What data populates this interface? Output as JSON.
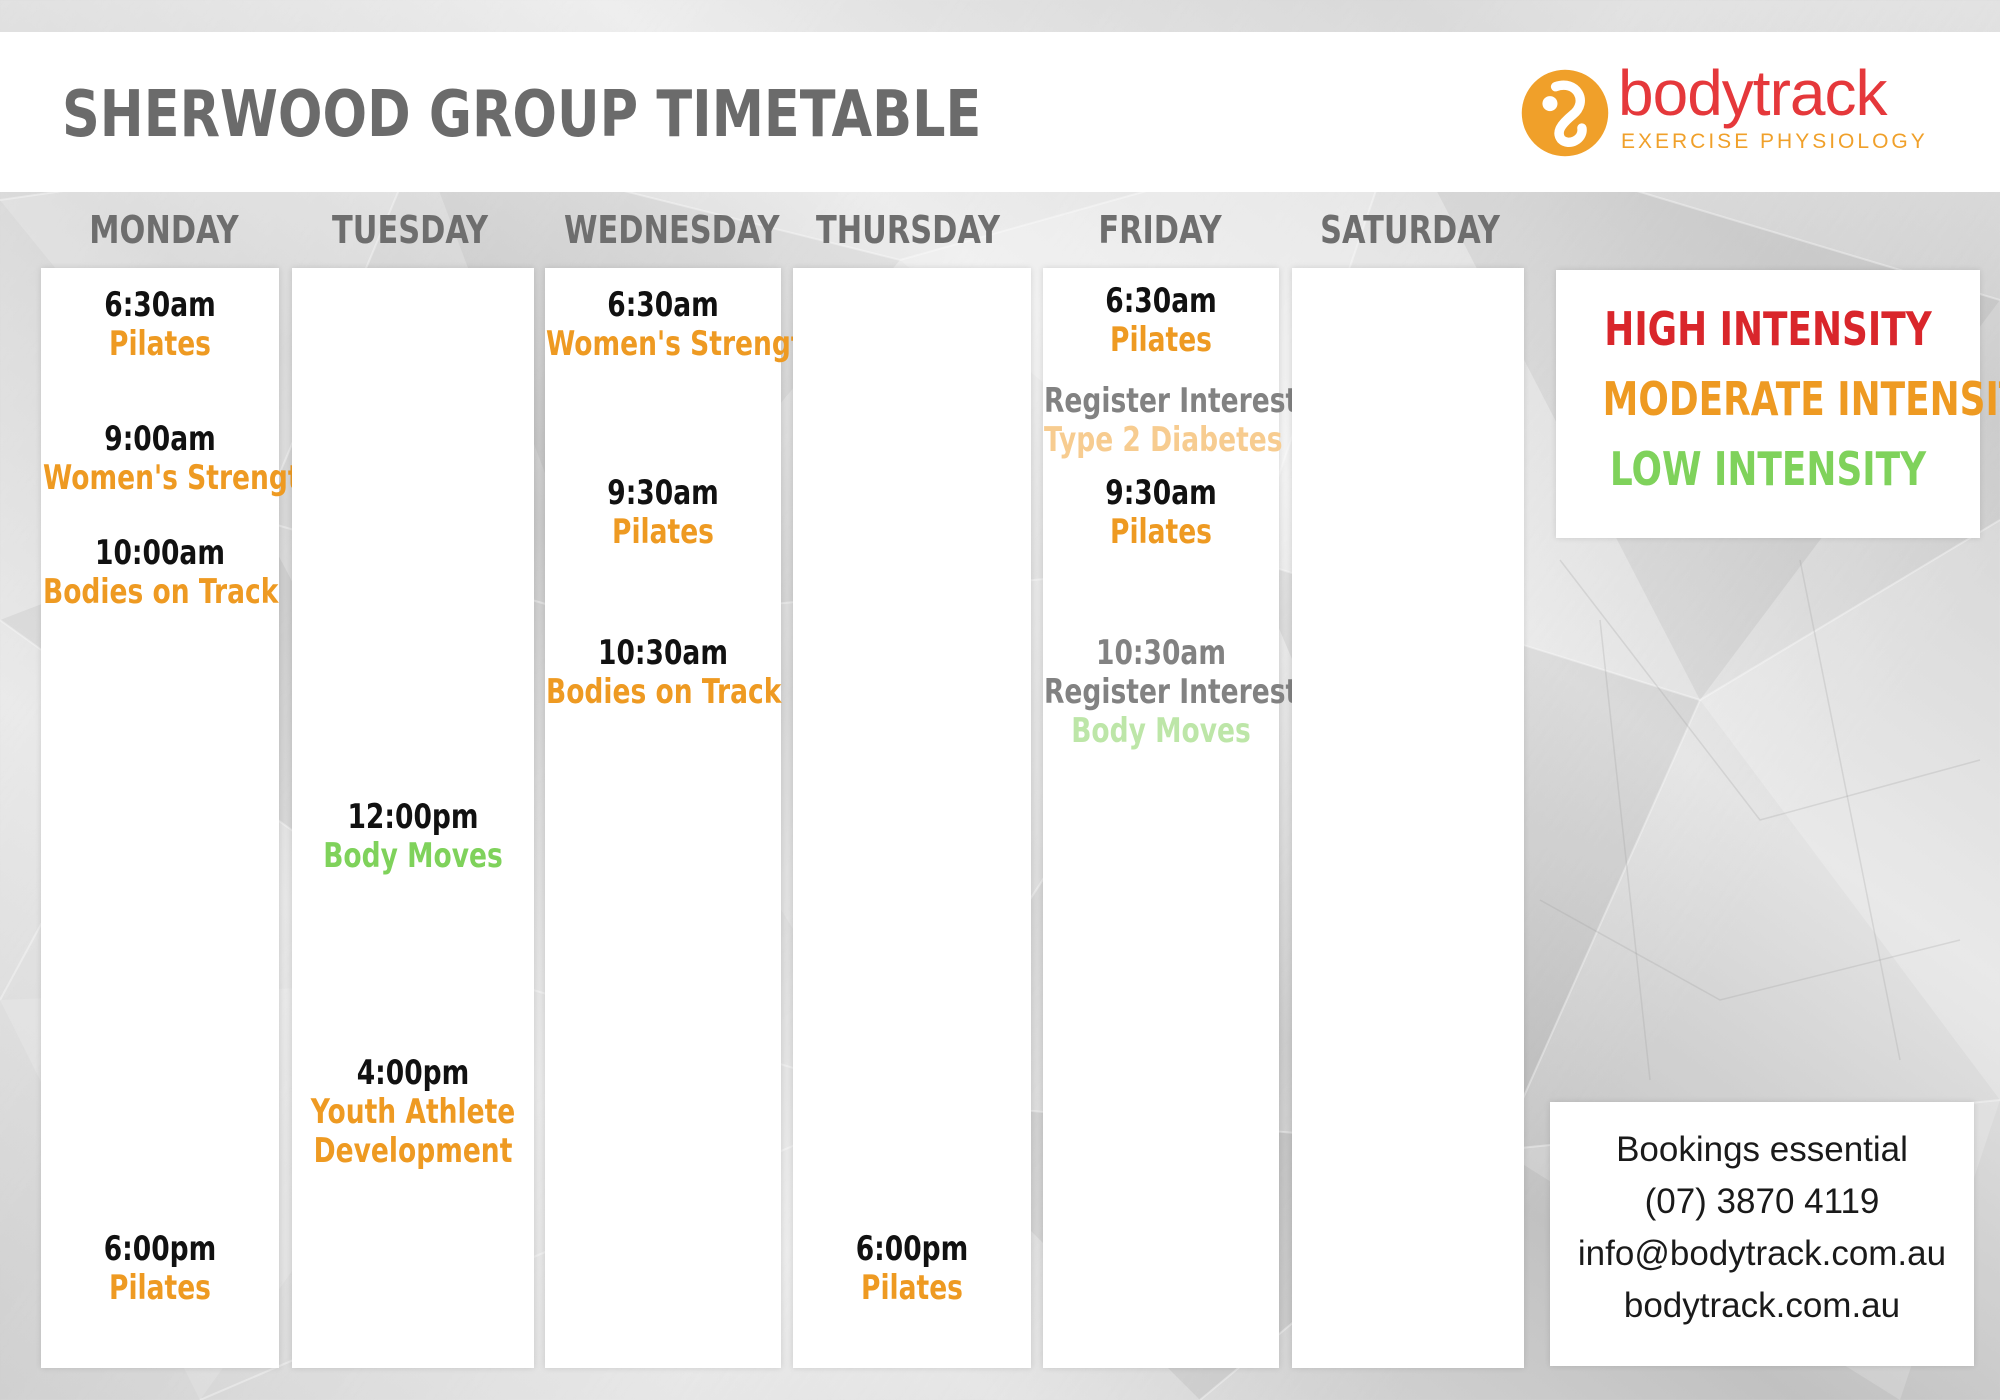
{
  "header": {
    "title": "SHERWOOD GROUP TIMETABLE",
    "logo": {
      "wordmark": "bodytrack",
      "subtitle": "EXERCISE  PHYSIOLOGY"
    }
  },
  "colors": {
    "high": "#d9262b",
    "moderate": "#ee9a22",
    "low": "#7fd25b",
    "register": "#828282",
    "brand_red": "#e5383b",
    "brand_orange": "#f0a02a"
  },
  "days": [
    "MONDAY",
    "TUESDAY",
    "WEDNESDAY",
    "THURSDAY",
    "FRIDAY",
    "SATURDAY"
  ],
  "schedule": {
    "monday": [
      {
        "time": "6:30am",
        "class": "Pilates"
      },
      {
        "time": "9:00am",
        "class": "Women's Strength"
      },
      {
        "time": "10:00am",
        "class": "Bodies on Track"
      },
      {
        "time": "6:00pm",
        "class": "Pilates"
      }
    ],
    "tuesday": [
      {
        "time": "12:00pm",
        "class": "Body Moves"
      },
      {
        "time": "4:00pm",
        "class": "Youth Athlete",
        "class2": "Development"
      }
    ],
    "wednesday": [
      {
        "time": "6:30am",
        "class": "Women's Strength"
      },
      {
        "time": "9:30am",
        "class": "Pilates"
      },
      {
        "time": "10:30am",
        "class": "Bodies on Track"
      }
    ],
    "thursday": [
      {
        "time": "6:00pm",
        "class": "Pilates"
      }
    ],
    "friday": [
      {
        "time": "6:30am",
        "class": "Pilates"
      },
      {
        "note": "Register Interest",
        "class": "Type 2 Diabetes"
      },
      {
        "time": "9:30am",
        "class": "Pilates"
      },
      {
        "time": "10:30am",
        "note": "Register Interest",
        "class": "Body Moves"
      }
    ]
  },
  "legend": {
    "high": "HIGH INTENSITY",
    "moderate": "MODERATE INTENSITY",
    "low": "LOW INTENSITY"
  },
  "contact": {
    "line1": "Bookings essential",
    "phone": "(07) 3870 4119",
    "email": "info@bodytrack.com.au",
    "website": "bodytrack.com.au"
  }
}
